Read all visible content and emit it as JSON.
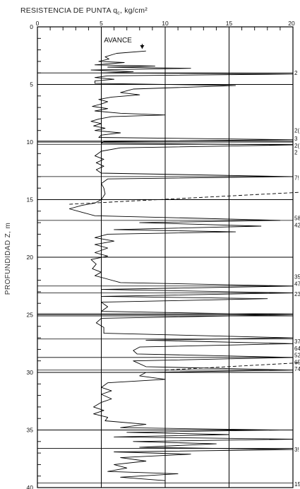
{
  "chart_data": {
    "type": "line",
    "title": "RESISTENCIA DE PUNTA q",
    "title_subscript": "c",
    "title_unit": ", kg/cm²",
    "ylabel": "PROFUNDIDAD Z, m",
    "xlabel": "",
    "annotation": "AVANCE",
    "xlim": [
      0,
      20
    ],
    "ylim": [
      0,
      40
    ],
    "y_inverted": true,
    "x_ticks": [
      0,
      5,
      10,
      15,
      20
    ],
    "y_ticks": [
      0,
      5,
      10,
      15,
      20,
      25,
      30,
      35,
      40
    ],
    "grid": "vertical lines at 5, 10, 15; horizontal lines at 5 m intervals",
    "series": [
      {
        "points": [
          [
            8.5,
            2.1
          ],
          [
            6.2,
            2.3
          ],
          [
            5.3,
            2.6
          ],
          [
            5.6,
            2.8
          ],
          [
            4.8,
            3.0
          ],
          [
            6.8,
            3.1
          ],
          [
            4.5,
            3.3
          ],
          [
            9.2,
            3.4
          ],
          [
            5.5,
            3.5
          ],
          [
            12.0,
            3.6
          ],
          [
            4.2,
            3.75
          ],
          [
            7.5,
            3.9
          ],
          [
            5.0,
            4.0
          ],
          [
            20.0,
            4.1
          ],
          [
            5.5,
            4.25
          ],
          [
            4.5,
            4.4
          ],
          [
            6.0,
            4.55
          ],
          [
            4.5,
            4.7
          ],
          [
            4.5,
            4.9
          ],
          [
            15.5,
            5.1
          ],
          [
            7.5,
            5.4
          ],
          [
            6.5,
            5.7
          ],
          [
            8.0,
            5.9
          ],
          [
            5.8,
            6.1
          ],
          [
            4.8,
            6.3
          ],
          [
            5.5,
            6.5
          ],
          [
            5.0,
            6.7
          ],
          [
            4.3,
            6.9
          ],
          [
            5.5,
            7.1
          ],
          [
            4.5,
            7.3
          ],
          [
            6.5,
            7.5
          ],
          [
            10.0,
            7.65
          ],
          [
            5.8,
            7.8
          ],
          [
            4.8,
            8.0
          ],
          [
            4.2,
            8.2
          ],
          [
            5.0,
            8.4
          ],
          [
            4.4,
            8.6
          ],
          [
            5.3,
            8.8
          ],
          [
            4.5,
            9.0
          ],
          [
            6.5,
            9.2
          ],
          [
            5.0,
            9.4
          ],
          [
            4.8,
            9.6
          ],
          [
            20.0,
            9.8
          ],
          [
            5.2,
            9.95
          ],
          [
            5.0,
            10.1
          ],
          [
            20.0,
            10.25
          ],
          [
            6.5,
            10.5
          ],
          [
            5.0,
            10.8
          ],
          [
            4.5,
            11.2
          ],
          [
            5.2,
            11.5
          ],
          [
            4.6,
            11.8
          ],
          [
            5.2,
            12.1
          ],
          [
            4.6,
            12.4
          ],
          [
            5.0,
            12.7
          ],
          [
            20.0,
            13.0
          ],
          [
            5.5,
            13.2
          ],
          [
            5.0,
            13.6
          ],
          [
            5.2,
            14.0
          ],
          [
            5.3,
            14.5
          ],
          [
            5.0,
            15.0
          ],
          [
            4.5,
            15.3
          ],
          [
            3.5,
            15.5
          ],
          [
            2.5,
            15.8
          ],
          [
            3.5,
            16.1
          ],
          [
            4.5,
            16.4
          ],
          [
            19.0,
            16.8
          ],
          [
            8.0,
            17.0
          ],
          [
            17.5,
            17.3
          ],
          [
            6.0,
            17.6
          ],
          [
            15.5,
            17.8
          ],
          [
            5.5,
            18.0
          ],
          [
            4.5,
            18.3
          ],
          [
            6.0,
            18.6
          ],
          [
            4.5,
            18.9
          ],
          [
            5.5,
            19.2
          ],
          [
            4.5,
            19.6
          ],
          [
            5.5,
            19.9
          ],
          [
            4.2,
            20.2
          ],
          [
            4.6,
            20.6
          ],
          [
            4.3,
            21.0
          ],
          [
            5.0,
            21.3
          ],
          [
            4.5,
            21.6
          ],
          [
            5.5,
            21.9
          ],
          [
            6.5,
            22.2
          ],
          [
            20.0,
            22.5
          ],
          [
            5.0,
            22.8
          ],
          [
            20.0,
            23.1
          ],
          [
            5.0,
            23.4
          ],
          [
            18.0,
            23.6
          ],
          [
            5.0,
            23.9
          ],
          [
            5.5,
            24.3
          ],
          [
            5.0,
            24.7
          ],
          [
            20.0,
            25.0
          ],
          [
            5.0,
            25.3
          ],
          [
            4.6,
            25.7
          ],
          [
            5.2,
            26.1
          ],
          [
            5.2,
            26.6
          ],
          [
            20.0,
            27.0
          ],
          [
            8.5,
            27.2
          ],
          [
            20.0,
            27.5
          ],
          [
            8.0,
            27.8
          ],
          [
            7.5,
            28.1
          ],
          [
            7.8,
            28.4
          ],
          [
            20.0,
            28.7
          ],
          [
            7.5,
            29.0
          ],
          [
            8.5,
            29.5
          ],
          [
            20.0,
            29.8
          ],
          [
            8.5,
            30.0
          ],
          [
            8.0,
            30.3
          ],
          [
            10.0,
            30.6
          ],
          [
            5.5,
            30.9
          ],
          [
            5.0,
            31.3
          ],
          [
            5.8,
            31.6
          ],
          [
            5.0,
            31.9
          ],
          [
            5.8,
            32.3
          ],
          [
            5.0,
            32.6
          ],
          [
            4.4,
            33.0
          ],
          [
            5.2,
            33.3
          ],
          [
            4.4,
            33.6
          ],
          [
            5.5,
            33.9
          ],
          [
            5.3,
            34.2
          ],
          [
            8.5,
            34.5
          ],
          [
            6.5,
            34.8
          ],
          [
            19.0,
            35.0
          ],
          [
            7.0,
            35.2
          ],
          [
            15.0,
            35.4
          ],
          [
            6.0,
            35.6
          ],
          [
            20.0,
            35.8
          ],
          [
            7.5,
            36.0
          ],
          [
            14.0,
            36.2
          ],
          [
            8.0,
            36.5
          ],
          [
            20.0,
            36.7
          ],
          [
            6.0,
            36.9
          ],
          [
            12.0,
            37.1
          ],
          [
            6.5,
            37.4
          ],
          [
            8.5,
            37.7
          ],
          [
            6.0,
            38.0
          ],
          [
            7.0,
            38.3
          ],
          [
            5.5,
            38.6
          ],
          [
            11.0,
            38.8
          ],
          [
            6.5,
            39.1
          ],
          [
            10.0,
            39.4
          ]
        ]
      }
    ],
    "horizontal_lines_at": [
      4.0,
      5.0,
      9.9,
      10.2,
      13.0,
      16.8,
      22.5,
      23.1,
      24.9,
      25.1,
      27.1,
      28.7,
      29.8,
      35.0,
      36.6,
      39.6
    ],
    "dashed_lines": [
      {
        "from": [
          2.5,
          15.4
        ],
        "to": [
          20.0,
          14.4
        ]
      },
      {
        "from": [
          10.0,
          29.8
        ],
        "to": [
          20.0,
          29.2
        ]
      }
    ],
    "right_labels": [
      {
        "text": "2",
        "y": 4.0
      },
      {
        "text": "2(",
        "y": 9.0
      },
      {
        "text": "3",
        "y": 9.7
      },
      {
        "text": "2(",
        "y": 10.3
      },
      {
        "text": "2",
        "y": 10.9
      },
      {
        "text": "7!",
        "y": 13.1
      },
      {
        "text": "58",
        "y": 16.6
      },
      {
        "text": "42",
        "y": 17.2
      },
      {
        "text": "35",
        "y": 21.7
      },
      {
        "text": "47",
        "y": 22.3
      },
      {
        "text": "23",
        "y": 23.2
      },
      {
        "text": "37",
        "y": 27.3
      },
      {
        "text": "64",
        "y": 27.9
      },
      {
        "text": "52",
        "y": 28.5
      },
      {
        "text": "65",
        "y": 29.1
      },
      {
        "text": "74",
        "y": 29.7
      },
      {
        "text": "3!",
        "y": 36.7
      },
      {
        "text": "15",
        "y": 39.7
      }
    ]
  }
}
